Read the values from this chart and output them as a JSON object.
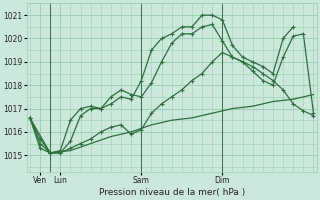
{
  "background_color": "#cce8dc",
  "grid_color": "#99ccb3",
  "line_color": "#2d6e3e",
  "title": "Pression niveau de la mer( hPa )",
  "ylabel_values": [
    1015,
    1016,
    1017,
    1018,
    1019,
    1020,
    1021
  ],
  "ylim": [
    1014.3,
    1021.5
  ],
  "xlim": [
    -0.3,
    28.3
  ],
  "vline_positions": [
    2.0,
    11.0,
    19.0
  ],
  "xtick_positions": [
    1.0,
    3.0,
    11.0,
    19.0
  ],
  "xtick_labels": [
    "Ven",
    "Lun",
    "Sam",
    "Dim"
  ],
  "series1_x": [
    0.0,
    2.0,
    4.0,
    6.0,
    8.0,
    10.0,
    12.0,
    14.0,
    16.0,
    18.0,
    20.0,
    22.0,
    24.0,
    26.0,
    28.0
  ],
  "series1_y": [
    1016.6,
    1015.1,
    1015.2,
    1015.5,
    1015.8,
    1016.0,
    1016.3,
    1016.5,
    1016.6,
    1016.8,
    1017.0,
    1017.1,
    1017.3,
    1017.4,
    1017.6
  ],
  "series2_x": [
    0.0,
    1.0,
    2.0,
    3.0,
    4.0,
    5.0,
    6.0,
    7.0,
    8.0,
    9.0,
    10.0,
    11.0,
    12.0,
    13.0,
    14.0,
    15.0,
    16.0,
    17.0,
    18.0,
    19.0,
    20.0,
    21.0,
    22.0,
    23.0,
    24.0,
    25.0,
    26.0,
    27.0,
    28.0
  ],
  "series2_y": [
    1016.6,
    1015.7,
    1015.1,
    1015.1,
    1015.3,
    1015.5,
    1015.7,
    1016.0,
    1016.2,
    1016.3,
    1015.9,
    1016.1,
    1016.8,
    1017.2,
    1017.5,
    1017.8,
    1018.2,
    1018.5,
    1019.0,
    1019.4,
    1019.2,
    1019.0,
    1018.8,
    1018.5,
    1018.2,
    1017.8,
    1017.2,
    1016.9,
    1016.7
  ],
  "series3_x": [
    0.0,
    1.0,
    2.0,
    3.0,
    4.0,
    5.0,
    6.0,
    7.0,
    8.0,
    9.0,
    10.0,
    11.0,
    12.0,
    13.0,
    14.0,
    15.0,
    16.0,
    17.0,
    18.0,
    19.0,
    20.0,
    21.0,
    22.0,
    23.0,
    24.0,
    25.0,
    26.0,
    27.0,
    28.0
  ],
  "series3_y": [
    1016.6,
    1015.5,
    1015.1,
    1015.2,
    1016.5,
    1017.0,
    1017.1,
    1017.0,
    1017.5,
    1017.8,
    1017.6,
    1017.5,
    1018.1,
    1019.0,
    1019.8,
    1020.2,
    1020.2,
    1020.5,
    1020.6,
    1019.9,
    1019.2,
    1019.0,
    1018.6,
    1018.2,
    1018.0,
    1019.2,
    1020.1,
    1020.2,
    1016.8
  ],
  "series4_x": [
    0.0,
    1.0,
    2.0,
    3.0,
    4.0,
    5.0,
    6.0,
    7.0,
    8.0,
    9.0,
    10.0,
    11.0,
    12.0,
    13.0,
    14.0,
    15.0,
    16.0,
    17.0,
    18.0,
    19.0,
    20.0,
    21.0,
    22.0,
    23.0,
    24.0,
    25.0,
    26.0
  ],
  "series4_y": [
    1016.6,
    1015.3,
    1015.1,
    1015.1,
    1015.6,
    1016.7,
    1017.0,
    1017.0,
    1017.2,
    1017.5,
    1017.4,
    1018.2,
    1019.5,
    1020.0,
    1020.2,
    1020.5,
    1020.5,
    1021.0,
    1021.0,
    1020.8,
    1019.7,
    1019.2,
    1019.0,
    1018.8,
    1018.5,
    1020.0,
    1020.5
  ]
}
